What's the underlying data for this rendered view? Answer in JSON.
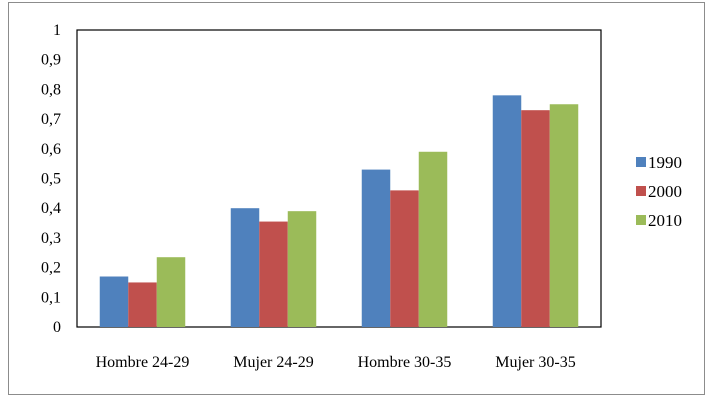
{
  "chart_data": {
    "type": "bar",
    "categories": [
      "Hombre 24-29",
      "Mujer 24-29",
      "Hombre 30-35",
      "Mujer 30-35"
    ],
    "series": [
      {
        "name": "1990",
        "values": [
          0.17,
          0.4,
          0.53,
          0.78
        ],
        "color": "#4f81bd"
      },
      {
        "name": "2000",
        "values": [
          0.15,
          0.355,
          0.46,
          0.73
        ],
        "color": "#c0504d"
      },
      {
        "name": "2010",
        "values": [
          0.235,
          0.39,
          0.59,
          0.75
        ],
        "color": "#9bbb59"
      }
    ],
    "y_ticks": [
      "0",
      "0,1",
      "0,2",
      "0,3",
      "0,4",
      "0,5",
      "0,6",
      "0,7",
      "0,8",
      "0,9",
      "1"
    ],
    "ylim": [
      0,
      1
    ],
    "grid": false,
    "legend_position": "right"
  }
}
